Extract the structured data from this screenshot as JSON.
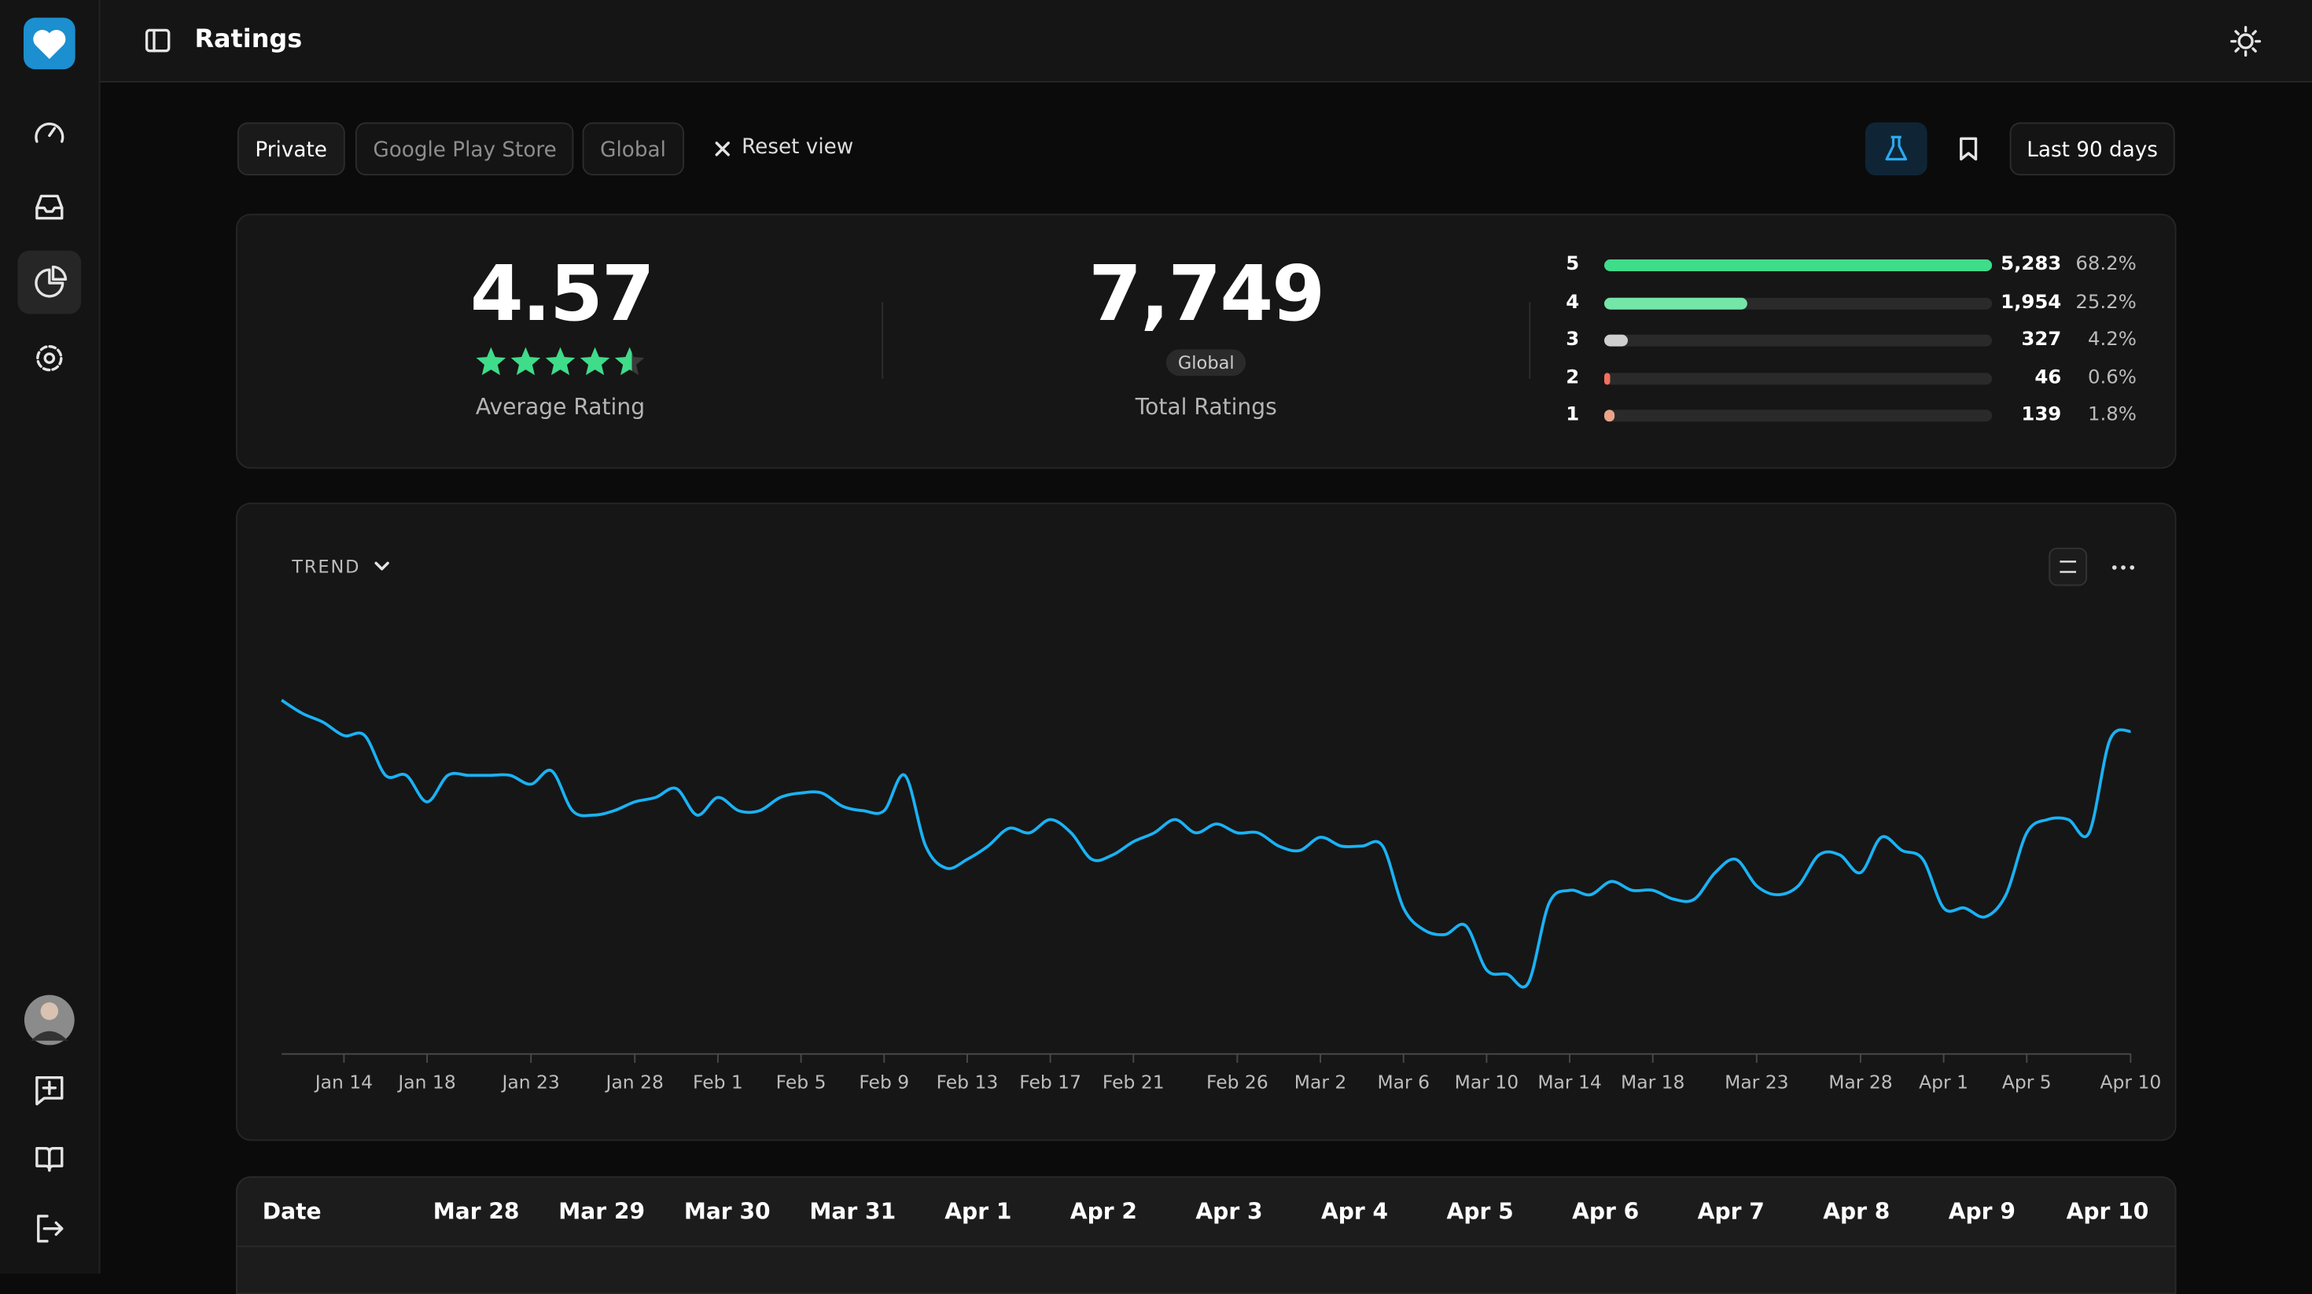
{
  "header": {
    "title": "Ratings"
  },
  "filters": {
    "chips": [
      "Private",
      "Google Play Store",
      "Global"
    ],
    "reset": "Reset view",
    "period": "Last 90 days"
  },
  "summary": {
    "average": 4.57,
    "average_label": "Average Rating",
    "total": "7,749",
    "total_scope": "Global",
    "total_label": "Total Ratings"
  },
  "distribution": {
    "rows": [
      {
        "stars": 5,
        "count": 5283,
        "count_label": "5,283",
        "share": "68.2%",
        "color": "#3fdc8a"
      },
      {
        "stars": 4,
        "count": 1954,
        "count_label": "1,954",
        "share": "25.2%",
        "color": "#74e6a8"
      },
      {
        "stars": 3,
        "count": 327,
        "share": "4.2%",
        "color": "#cfcfcf"
      },
      {
        "stars": 2,
        "count": 46,
        "share": "0.6%",
        "color": "#f0705f"
      },
      {
        "stars": 1,
        "count": 139,
        "share": "1.8%",
        "color": "#e9a48c"
      }
    ]
  },
  "chart_data": {
    "type": "line",
    "title": "TREND",
    "categories": [
      null,
      null,
      null,
      "Jan 14",
      null,
      null,
      null,
      "Jan 18",
      null,
      null,
      null,
      null,
      "Jan 23",
      null,
      null,
      null,
      null,
      "Jan 28",
      null,
      null,
      null,
      "Feb 1",
      null,
      null,
      null,
      "Feb 5",
      null,
      null,
      null,
      "Feb 9",
      null,
      null,
      null,
      "Feb 13",
      null,
      null,
      null,
      "Feb 17",
      null,
      null,
      null,
      "Feb 21",
      null,
      null,
      null,
      null,
      "Feb 26",
      null,
      null,
      null,
      "Mar 2",
      null,
      null,
      null,
      "Mar 6",
      null,
      null,
      null,
      "Mar 10",
      null,
      null,
      null,
      "Mar 14",
      null,
      null,
      null,
      "Mar 18",
      null,
      null,
      null,
      null,
      "Mar 23",
      null,
      null,
      null,
      null,
      "Mar 28",
      null,
      null,
      null,
      "Apr 1",
      null,
      null,
      null,
      "Apr 5",
      null,
      null,
      null,
      null,
      "Apr 10"
    ],
    "values": [
      80,
      77,
      75,
      72,
      72,
      63,
      63,
      57,
      63,
      63,
      63,
      63,
      61,
      64,
      55,
      54,
      55,
      57,
      58,
      60,
      54,
      58,
      55,
      55,
      58,
      59,
      59,
      56,
      55,
      55,
      63,
      47,
      42,
      44,
      47,
      51,
      50,
      53,
      50,
      44,
      45,
      48,
      50,
      53,
      50,
      52,
      50,
      50,
      47,
      46,
      49,
      47,
      47,
      47,
      33,
      28,
      27,
      29,
      19,
      18,
      16,
      34,
      37,
      36,
      39,
      37,
      37,
      35,
      35,
      41,
      44,
      38,
      36,
      38,
      45,
      45,
      41,
      49,
      46,
      44,
      33,
      33,
      31,
      36,
      50,
      53,
      53,
      50,
      71,
      73
    ],
    "color": "#1ab2f5",
    "ylim": [
      0,
      100
    ]
  },
  "table": {
    "header": "Date",
    "columns": [
      "Mar 28",
      "Mar 29",
      "Mar 30",
      "Mar 31",
      "Apr 1",
      "Apr 2",
      "Apr 3",
      "Apr 4",
      "Apr 5",
      "Apr 6",
      "Apr 7",
      "Apr 8",
      "Apr 9",
      "Apr 10"
    ]
  }
}
